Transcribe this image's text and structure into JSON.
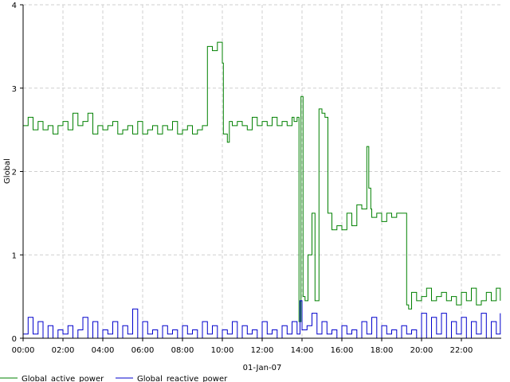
{
  "chart_data": {
    "type": "line",
    "title": "",
    "xlabel": "01-Jan-07",
    "ylabel": "Global",
    "xlim": [
      "00:00",
      "24:00"
    ],
    "ylim": [
      0,
      4
    ],
    "x_ticks": [
      "00:00",
      "02:00",
      "04:00",
      "06:00",
      "08:00",
      "10:00",
      "12:00",
      "14:00",
      "16:00",
      "18:00",
      "20:00",
      "22:00"
    ],
    "y_ticks": [
      0,
      1,
      2,
      3,
      4
    ],
    "grid": true,
    "legend_position": "bottom-left",
    "series": [
      {
        "name": "Global_active_power",
        "color": "#008000",
        "x": [
          0.0,
          0.25,
          0.5,
          0.75,
          1.0,
          1.25,
          1.5,
          1.75,
          2.0,
          2.25,
          2.5,
          2.75,
          3.0,
          3.25,
          3.5,
          3.75,
          4.0,
          4.25,
          4.5,
          4.75,
          5.0,
          5.25,
          5.5,
          5.75,
          6.0,
          6.25,
          6.5,
          6.75,
          7.0,
          7.25,
          7.5,
          7.75,
          8.0,
          8.25,
          8.5,
          8.75,
          9.0,
          9.25,
          9.5,
          9.75,
          10.0,
          10.05,
          10.25,
          10.35,
          10.5,
          10.75,
          11.0,
          11.25,
          11.5,
          11.75,
          12.0,
          12.25,
          12.5,
          12.75,
          13.0,
          13.25,
          13.5,
          13.6,
          13.75,
          13.85,
          13.95,
          14.05,
          14.15,
          14.3,
          14.5,
          14.65,
          14.85,
          15.0,
          15.15,
          15.3,
          15.5,
          15.75,
          16.0,
          16.25,
          16.5,
          16.75,
          17.0,
          17.25,
          17.35,
          17.45,
          17.5,
          17.75,
          18.0,
          18.25,
          18.5,
          18.75,
          19.0,
          19.25,
          19.35,
          19.5,
          19.75,
          20.0,
          20.25,
          20.5,
          20.75,
          21.0,
          21.25,
          21.5,
          21.75,
          22.0,
          22.25,
          22.5,
          22.75,
          23.0,
          23.25,
          23.5,
          23.75,
          23.95
        ],
        "values": [
          2.55,
          2.65,
          2.5,
          2.6,
          2.5,
          2.55,
          2.45,
          2.55,
          2.6,
          2.5,
          2.7,
          2.55,
          2.6,
          2.7,
          2.45,
          2.55,
          2.5,
          2.55,
          2.6,
          2.45,
          2.5,
          2.55,
          2.45,
          2.6,
          2.45,
          2.5,
          2.55,
          2.45,
          2.55,
          2.5,
          2.6,
          2.45,
          2.5,
          2.55,
          2.45,
          2.5,
          2.55,
          3.5,
          3.45,
          3.55,
          3.3,
          2.45,
          2.35,
          2.6,
          2.55,
          2.6,
          2.55,
          2.5,
          2.65,
          2.55,
          2.6,
          2.55,
          2.65,
          2.55,
          2.6,
          2.55,
          2.65,
          2.6,
          2.65,
          0.2,
          2.9,
          0.5,
          0.45,
          1.0,
          1.5,
          0.45,
          2.75,
          2.7,
          2.65,
          1.5,
          1.3,
          1.35,
          1.3,
          1.5,
          1.35,
          1.6,
          1.55,
          2.3,
          1.8,
          1.55,
          1.45,
          1.5,
          1.4,
          1.5,
          1.45,
          1.5,
          1.5,
          0.4,
          0.35,
          0.55,
          0.45,
          0.5,
          0.6,
          0.45,
          0.5,
          0.55,
          0.45,
          0.5,
          0.4,
          0.55,
          0.45,
          0.6,
          0.4,
          0.45,
          0.55,
          0.45,
          0.6,
          0.45
        ]
      },
      {
        "name": "Global_reactive_power",
        "color": "#0000cc",
        "x": [
          0.0,
          0.25,
          0.5,
          0.75,
          1.0,
          1.25,
          1.5,
          1.75,
          2.0,
          2.25,
          2.5,
          2.75,
          3.0,
          3.25,
          3.5,
          3.75,
          4.0,
          4.25,
          4.5,
          4.75,
          5.0,
          5.25,
          5.5,
          5.75,
          6.0,
          6.25,
          6.5,
          6.75,
          7.0,
          7.25,
          7.5,
          7.75,
          8.0,
          8.25,
          8.5,
          8.75,
          9.0,
          9.25,
          9.5,
          9.75,
          10.0,
          10.25,
          10.5,
          10.75,
          11.0,
          11.25,
          11.5,
          11.75,
          12.0,
          12.25,
          12.5,
          12.75,
          13.0,
          13.25,
          13.5,
          13.75,
          13.9,
          14.0,
          14.25,
          14.5,
          14.75,
          15.0,
          15.25,
          15.5,
          15.75,
          16.0,
          16.25,
          16.5,
          16.75,
          17.0,
          17.25,
          17.5,
          17.75,
          18.0,
          18.25,
          18.5,
          18.75,
          19.0,
          19.25,
          19.5,
          19.75,
          20.0,
          20.25,
          20.5,
          20.75,
          21.0,
          21.25,
          21.5,
          21.75,
          22.0,
          22.25,
          22.5,
          22.75,
          23.0,
          23.25,
          23.5,
          23.75,
          23.95
        ],
        "values": [
          0.05,
          0.25,
          0.05,
          0.2,
          0.0,
          0.15,
          0.0,
          0.1,
          0.05,
          0.15,
          0.0,
          0.1,
          0.25,
          0.0,
          0.2,
          0.0,
          0.1,
          0.05,
          0.2,
          0.0,
          0.15,
          0.05,
          0.35,
          0.0,
          0.2,
          0.05,
          0.1,
          0.0,
          0.15,
          0.05,
          0.1,
          0.0,
          0.15,
          0.05,
          0.1,
          0.0,
          0.2,
          0.05,
          0.15,
          0.0,
          0.1,
          0.05,
          0.2,
          0.0,
          0.15,
          0.05,
          0.1,
          0.0,
          0.2,
          0.05,
          0.1,
          0.0,
          0.15,
          0.05,
          0.2,
          0.05,
          0.45,
          0.1,
          0.15,
          0.3,
          0.05,
          0.2,
          0.05,
          0.1,
          0.0,
          0.15,
          0.05,
          0.1,
          0.0,
          0.2,
          0.05,
          0.25,
          0.0,
          0.15,
          0.05,
          0.1,
          0.0,
          0.15,
          0.05,
          0.1,
          0.0,
          0.3,
          0.0,
          0.25,
          0.05,
          0.3,
          0.0,
          0.2,
          0.05,
          0.25,
          0.0,
          0.2,
          0.05,
          0.3,
          0.0,
          0.2,
          0.05,
          0.3
        ]
      }
    ]
  }
}
